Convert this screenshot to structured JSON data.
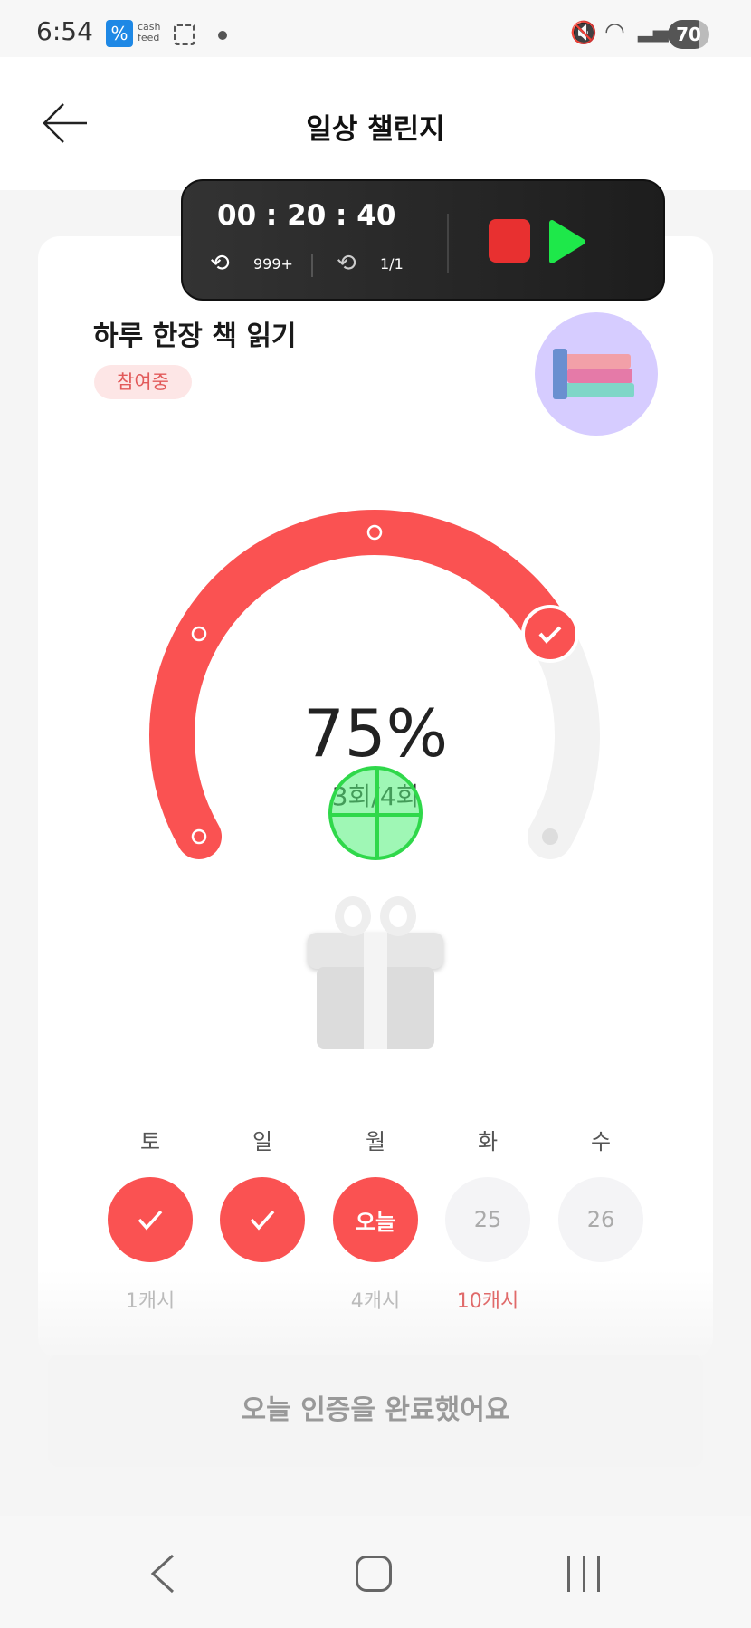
{
  "status_bar": {
    "time": "6:54",
    "battery": "70",
    "app_label": "cash feed"
  },
  "header": {
    "title": "일상 챌린지"
  },
  "overlay": {
    "timer": "00 : 20 : 40",
    "repeat_count": "999+",
    "loop_count": "1/1",
    "stop_color": "#e83030",
    "play_color": "#1ee84a"
  },
  "challenge": {
    "title": "하루 한장 책 읽기",
    "badge": "참여중",
    "progress_percent": 75,
    "progress_label": "75%",
    "count_label": "3회/4회",
    "accent": "#fa5252"
  },
  "days": [
    {
      "label": "토",
      "state": "done",
      "content": "",
      "reward": "1캐시"
    },
    {
      "label": "일",
      "state": "done",
      "content": "",
      "reward": ""
    },
    {
      "label": "월",
      "state": "today",
      "content": "오늘",
      "reward": "4캐시"
    },
    {
      "label": "화",
      "state": "future",
      "content": "25",
      "reward": "10캐시"
    },
    {
      "label": "수",
      "state": "future",
      "content": "26",
      "reward": ""
    }
  ],
  "button": {
    "label": "오늘 인증을 완료했어요"
  }
}
